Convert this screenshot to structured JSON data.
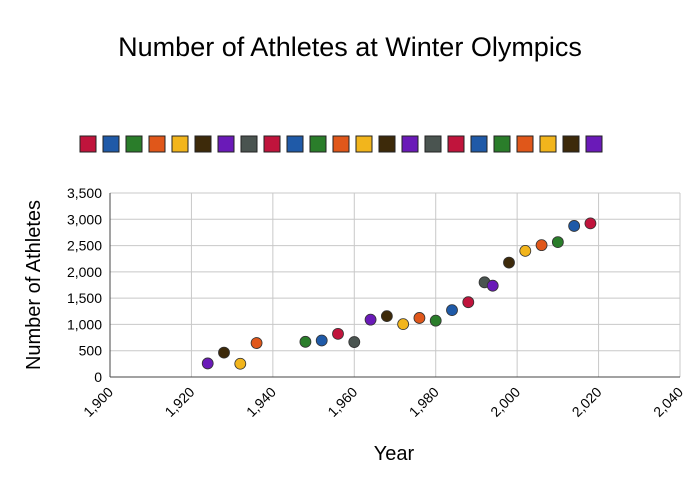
{
  "chart_data": {
    "type": "scatter",
    "title": "Number of Athletes at Winter Olympics",
    "xlabel": "Year",
    "ylabel": "Number of Athletes",
    "xlim": [
      1900,
      2040
    ],
    "ylim": [
      0,
      3500
    ],
    "x_ticks": [
      "1,900",
      "1,920",
      "1,940",
      "1,960",
      "1,980",
      "2,000",
      "2,020",
      "2,040"
    ],
    "y_ticks": [
      "0",
      "500",
      "1,000",
      "1,500",
      "2,000",
      "2,500",
      "3,000",
      "3,500"
    ],
    "grid": true,
    "legend_position": "top",
    "palette": [
      "#c0143c",
      "#1f5aa8",
      "#2a7d2a",
      "#e0571a",
      "#f2b51c",
      "#3d2a0a",
      "#6a1ab8",
      "#4a5450"
    ],
    "points": [
      {
        "x": 1924,
        "y": 258,
        "color": "#6a1ab8"
      },
      {
        "x": 1928,
        "y": 464,
        "color": "#3d2a0a"
      },
      {
        "x": 1932,
        "y": 252,
        "color": "#f2b51c"
      },
      {
        "x": 1936,
        "y": 646,
        "color": "#e0571a"
      },
      {
        "x": 1948,
        "y": 669,
        "color": "#2a7d2a"
      },
      {
        "x": 1952,
        "y": 694,
        "color": "#1f5aa8"
      },
      {
        "x": 1956,
        "y": 821,
        "color": "#c0143c"
      },
      {
        "x": 1960,
        "y": 665,
        "color": "#4a5450"
      },
      {
        "x": 1964,
        "y": 1091,
        "color": "#6a1ab8"
      },
      {
        "x": 1968,
        "y": 1158,
        "color": "#3d2a0a"
      },
      {
        "x": 1972,
        "y": 1006,
        "color": "#f2b51c"
      },
      {
        "x": 1976,
        "y": 1123,
        "color": "#e0571a"
      },
      {
        "x": 1980,
        "y": 1072,
        "color": "#2a7d2a"
      },
      {
        "x": 1984,
        "y": 1272,
        "color": "#1f5aa8"
      },
      {
        "x": 1988,
        "y": 1423,
        "color": "#c0143c"
      },
      {
        "x": 1992,
        "y": 1801,
        "color": "#4a5450"
      },
      {
        "x": 1994,
        "y": 1737,
        "color": "#6a1ab8"
      },
      {
        "x": 1998,
        "y": 2176,
        "color": "#3d2a0a"
      },
      {
        "x": 2002,
        "y": 2399,
        "color": "#f2b51c"
      },
      {
        "x": 2006,
        "y": 2508,
        "color": "#e0571a"
      },
      {
        "x": 2010,
        "y": 2566,
        "color": "#2a7d2a"
      },
      {
        "x": 2014,
        "y": 2873,
        "color": "#1f5aa8"
      },
      {
        "x": 2018,
        "y": 2922,
        "color": "#c0143c"
      }
    ],
    "legend_swatches": [
      "#c0143c",
      "#1f5aa8",
      "#2a7d2a",
      "#e0571a",
      "#f2b51c",
      "#3d2a0a",
      "#6a1ab8",
      "#4a5450",
      "#c0143c",
      "#1f5aa8",
      "#2a7d2a",
      "#e0571a",
      "#f2b51c",
      "#3d2a0a",
      "#6a1ab8",
      "#4a5450",
      "#c0143c",
      "#1f5aa8",
      "#2a7d2a",
      "#e0571a",
      "#f2b51c",
      "#3d2a0a",
      "#6a1ab8"
    ]
  }
}
